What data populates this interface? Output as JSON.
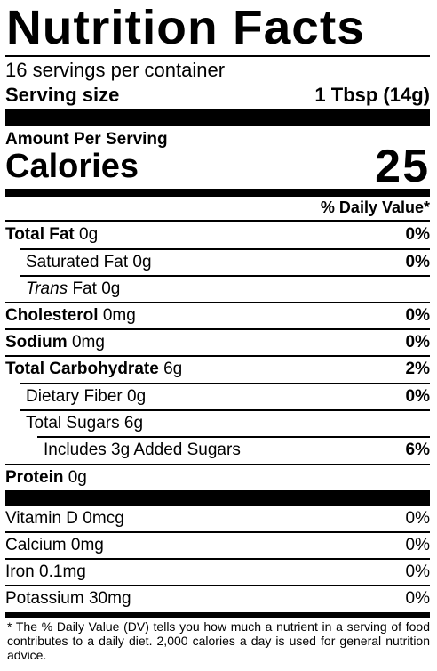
{
  "title": "Nutrition Facts",
  "servings_per_container": "16 servings per container",
  "serving_size": {
    "label": "Serving size",
    "value": "1 Tbsp (14g)"
  },
  "amount_per_serving": "Amount Per Serving",
  "calories": {
    "label": "Calories",
    "value": "25"
  },
  "daily_value_header": "% Daily Value*",
  "nutrients": [
    {
      "name": "Total Fat",
      "amount": "0g",
      "dv": "0%"
    },
    {
      "name": "Saturated Fat",
      "amount": "0g",
      "dv": "0%"
    },
    {
      "name_italic": "Trans",
      "name": "Fat",
      "amount": "0g",
      "dv": ""
    },
    {
      "name": "Cholesterol",
      "amount": "0mg",
      "dv": "0%"
    },
    {
      "name": "Sodium",
      "amount": "0mg",
      "dv": "0%"
    },
    {
      "name": "Total Carbohydrate",
      "amount": "6g",
      "dv": "2%"
    },
    {
      "name": "Dietary Fiber",
      "amount": "0g",
      "dv": "0%"
    },
    {
      "name": "Total Sugars",
      "amount": "6g",
      "dv": ""
    },
    {
      "name": "Includes 3g Added Sugars",
      "amount": "",
      "dv": "6%"
    },
    {
      "name": "Protein",
      "amount": "0g",
      "dv": ""
    }
  ],
  "vitamins": [
    {
      "name": "Vitamin D",
      "amount": "0mcg",
      "dv": "0%"
    },
    {
      "name": "Calcium",
      "amount": "0mg",
      "dv": "0%"
    },
    {
      "name": "Iron",
      "amount": "0.1mg",
      "dv": "0%"
    },
    {
      "name": "Potassium",
      "amount": "30mg",
      "dv": "0%"
    }
  ],
  "footnote": "* The % Daily Value (DV) tells you how much a nutrient in a serving of food contributes to a daily diet. 2,000 calories a day is used for general nutrition advice."
}
